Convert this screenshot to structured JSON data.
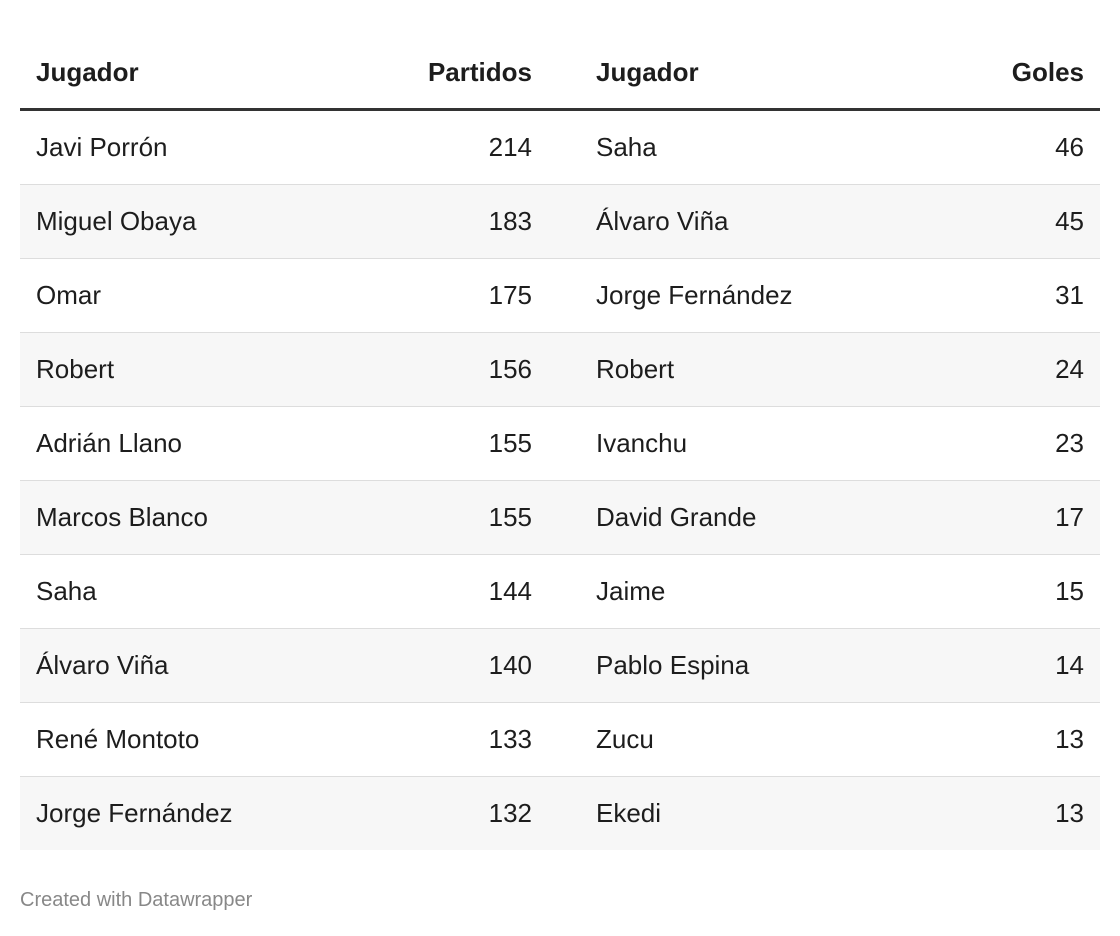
{
  "table": {
    "header": [
      "Jugador",
      "Partidos",
      "Jugador",
      "Goles"
    ],
    "rows": [
      [
        "Javi Porrón",
        214,
        "Saha",
        46
      ],
      [
        "Miguel Obaya",
        183,
        "Álvaro Viña",
        45
      ],
      [
        "Omar",
        175,
        "Jorge Fernández",
        31
      ],
      [
        "Robert",
        156,
        "Robert",
        24
      ],
      [
        "Adrián Llano",
        155,
        "Ivanchu",
        23
      ],
      [
        "Marcos Blanco",
        155,
        "David Grande",
        17
      ],
      [
        "Saha",
        144,
        "Jaime",
        15
      ],
      [
        "Álvaro Viña",
        140,
        "Pablo Espina",
        14
      ],
      [
        "René Montoto",
        133,
        "Zucu",
        13
      ],
      [
        "Jorge Fernández",
        132,
        "Ekedi",
        13
      ]
    ]
  },
  "footer": "Created with Datawrapper"
}
